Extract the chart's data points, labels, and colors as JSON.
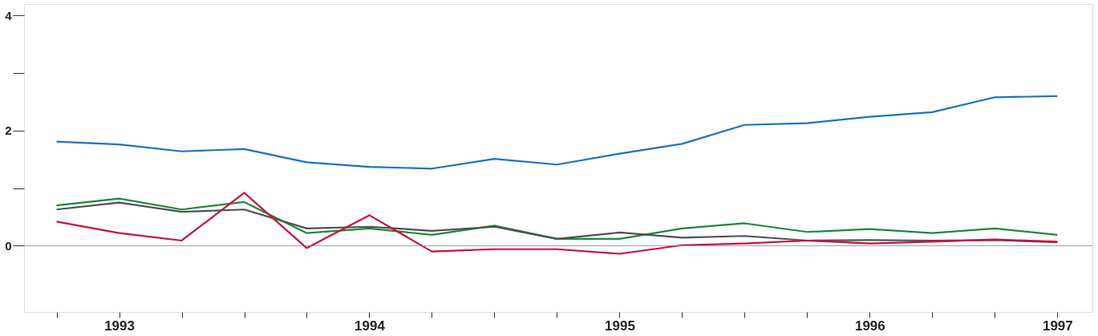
{
  "chart_data": {
    "type": "line",
    "x": [
      1993.25,
      1993.5,
      1993.75,
      1994.0,
      1994.25,
      1994.5,
      1994.75,
      1995.0,
      1995.25,
      1995.5,
      1995.75,
      1996.0,
      1996.25,
      1996.5,
      1996.75,
      1997.0,
      1997.25
    ],
    "series": [
      {
        "color": "#1a73c0",
        "values": [
          1.81,
          1.76,
          1.64,
          1.68,
          1.45,
          1.37,
          1.34,
          1.51,
          1.41,
          1.6,
          1.77,
          2.1,
          2.13,
          2.24,
          2.32,
          2.58,
          2.6
        ]
      },
      {
        "color": "#1a8a3a",
        "values": [
          0.7,
          0.82,
          0.63,
          0.76,
          0.22,
          0.3,
          0.19,
          0.35,
          0.12,
          0.12,
          0.3,
          0.39,
          0.24,
          0.29,
          0.22,
          0.3,
          0.19
        ]
      },
      {
        "color": "#505050",
        "values": [
          0.63,
          0.75,
          0.59,
          0.63,
          0.3,
          0.33,
          0.26,
          0.33,
          0.12,
          0.23,
          0.14,
          0.17,
          0.09,
          0.1,
          0.09,
          0.1,
          0.06
        ]
      },
      {
        "color": "#c8103e",
        "values": [
          0.42,
          0.22,
          0.09,
          0.92,
          -0.04,
          0.53,
          -0.1,
          -0.06,
          -0.06,
          -0.14,
          0.01,
          0.04,
          0.09,
          0.04,
          0.07,
          0.11,
          0.07
        ]
      }
    ],
    "xlim": [
      1993.12,
      1997.39
    ],
    "xticks": [
      {
        "value": 1993.25,
        "label": null
      },
      {
        "value": 1993.5,
        "label": "1993"
      },
      {
        "value": 1993.75,
        "label": null
      },
      {
        "value": 1994.0,
        "label": null
      },
      {
        "value": 1994.25,
        "label": null
      },
      {
        "value": 1994.5,
        "label": "1994"
      },
      {
        "value": 1994.75,
        "label": null
      },
      {
        "value": 1995.0,
        "label": null
      },
      {
        "value": 1995.25,
        "label": null
      },
      {
        "value": 1995.5,
        "label": "1995"
      },
      {
        "value": 1995.75,
        "label": null
      },
      {
        "value": 1996.0,
        "label": null
      },
      {
        "value": 1996.25,
        "label": null
      },
      {
        "value": 1996.5,
        "label": "1996"
      },
      {
        "value": 1996.75,
        "label": null
      },
      {
        "value": 1997.0,
        "label": null
      },
      {
        "value": 1997.25,
        "label": "1997"
      }
    ],
    "ylim": [
      -1.15,
      4.2
    ],
    "yticks": [
      0,
      {
        "value": 1,
        "label": null
      },
      2,
      {
        "value": 3,
        "label": null
      },
      4
    ],
    "ref_lines": [
      {
        "axis": "y",
        "value": 0,
        "color": "#888888"
      }
    ],
    "grid": false,
    "legend": false,
    "marker": "none",
    "line_style": "solid"
  }
}
